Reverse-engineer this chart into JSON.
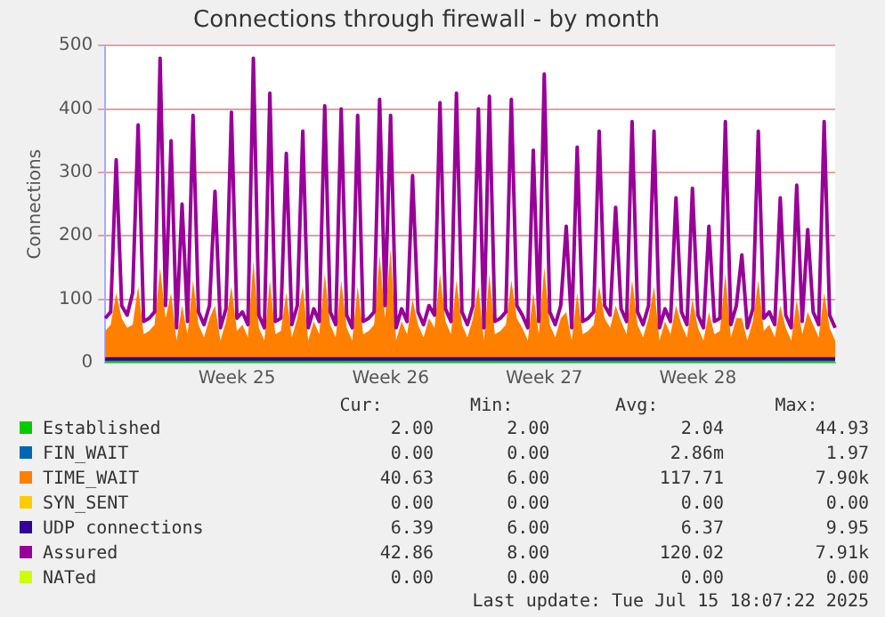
{
  "chart_data": {
    "type": "line",
    "title": "Connections through firewall - by month",
    "ylabel": "Connections",
    "categories": [
      null,
      null,
      null,
      null,
      null,
      null,
      null,
      null,
      null,
      null,
      null,
      null,
      null,
      null,
      null,
      null,
      null,
      null,
      null,
      null,
      null,
      null,
      null,
      null,
      "Week 25",
      null,
      null,
      null,
      null,
      null,
      null,
      null,
      null,
      null,
      null,
      null,
      null,
      null,
      null,
      null,
      null,
      null,
      null,
      null,
      null,
      null,
      null,
      null,
      null,
      null,
      null,
      null,
      "Week 26",
      null,
      null,
      null,
      null,
      null,
      null,
      null,
      null,
      null,
      null,
      null,
      null,
      null,
      null,
      null,
      null,
      null,
      null,
      null,
      null,
      null,
      null,
      null,
      null,
      null,
      null,
      null,
      "Week 27",
      null,
      null,
      null,
      null,
      null,
      null,
      null,
      null,
      null,
      null,
      null,
      null,
      null,
      null,
      null,
      null,
      null,
      null,
      null,
      null,
      null,
      null,
      null,
      null,
      null,
      null,
      null,
      "Week 28",
      null,
      null,
      null,
      null,
      null,
      null,
      null,
      null,
      null,
      null,
      null,
      null,
      null,
      null,
      null,
      null,
      null,
      null,
      null,
      null,
      null,
      null,
      null,
      null,
      null
    ],
    "series": [
      {
        "name": "Established",
        "color": "#00cc00",
        "values": [
          2,
          2,
          2,
          2,
          2,
          2,
          2,
          2,
          2,
          2,
          2,
          2,
          2,
          2,
          2,
          2,
          2,
          2,
          2,
          2,
          2,
          2,
          2,
          2,
          2,
          2,
          2,
          2,
          2,
          2,
          2,
          2,
          2,
          2,
          2,
          2,
          2,
          2,
          2,
          2,
          2,
          2,
          2,
          2,
          2,
          2,
          2,
          2,
          2,
          2,
          2,
          2,
          2,
          2,
          2,
          2,
          2,
          2,
          2,
          2,
          2,
          2,
          2,
          2,
          2,
          2,
          2,
          2,
          2,
          2,
          2,
          2,
          2,
          2,
          2,
          2,
          2,
          2,
          2,
          2,
          2,
          2,
          2,
          2,
          2,
          2,
          2,
          2,
          2,
          2,
          2,
          2,
          2,
          2,
          2,
          2,
          2,
          2,
          2,
          2,
          2,
          2,
          2,
          2,
          2,
          2,
          2,
          2,
          2,
          2,
          2,
          2,
          2,
          2,
          2,
          2,
          2,
          2,
          2,
          2,
          2,
          2,
          2,
          2,
          2,
          2,
          2,
          2,
          2,
          2,
          2,
          2,
          2,
          2
        ]
      },
      {
        "name": "FIN_WAIT",
        "color": "#0066b3",
        "values": [
          null,
          null,
          null,
          null,
          null,
          null,
          null,
          null,
          null,
          null,
          null,
          null,
          null,
          null,
          null,
          null,
          null,
          null,
          null,
          null,
          null,
          null,
          null,
          null,
          null,
          null,
          null,
          null,
          null,
          null,
          null,
          null,
          null,
          null,
          null,
          null,
          null,
          null,
          null,
          null,
          null,
          null,
          null,
          null,
          null,
          null,
          null,
          null,
          null,
          null,
          null,
          null,
          null,
          null,
          null,
          null,
          null,
          null,
          null,
          null,
          null,
          null,
          null,
          null,
          null,
          null,
          null,
          null,
          null,
          null,
          null,
          null,
          null,
          null,
          null,
          null,
          null,
          null,
          null,
          null,
          null,
          null,
          null,
          null,
          null,
          null,
          null,
          null,
          null,
          null,
          null,
          null,
          null,
          null,
          null,
          null,
          null,
          null,
          null,
          null,
          null,
          null,
          null,
          null,
          null,
          null,
          null,
          null,
          null,
          null,
          null,
          null,
          null,
          null,
          null,
          null,
          null,
          null,
          null,
          null,
          null,
          null,
          null,
          null,
          null,
          null,
          null,
          null,
          null,
          null,
          null,
          null,
          null,
          null
        ]
      },
      {
        "name": "TIME_WAIT",
        "type": "area",
        "color": "#ff8000",
        "values": [
          50,
          60,
          110,
          70,
          55,
          60,
          120,
          45,
          50,
          60,
          150,
          70,
          110,
          35,
          90,
          45,
          130,
          60,
          40,
          70,
          90,
          35,
          65,
          120,
          50,
          60,
          40,
          160,
          55,
          35,
          130,
          45,
          50,
          110,
          40,
          70,
          120,
          35,
          65,
          45,
          140,
          60,
          40,
          130,
          55,
          35,
          120,
          45,
          50,
          60,
          170,
          70,
          180,
          35,
          65,
          45,
          100,
          60,
          40,
          70,
          55,
          140,
          65,
          45,
          130,
          60,
          40,
          70,
          120,
          35,
          140,
          45,
          50,
          60,
          130,
          70,
          55,
          35,
          110,
          45,
          150,
          60,
          40,
          70,
          80,
          35,
          110,
          45,
          50,
          60,
          120,
          70,
          55,
          90,
          65,
          45,
          130,
          60,
          40,
          70,
          120,
          35,
          65,
          45,
          90,
          60,
          40,
          100,
          55,
          35,
          80,
          45,
          50,
          140,
          40,
          70,
          70,
          35,
          65,
          130,
          50,
          60,
          40,
          90,
          55,
          35,
          100,
          45,
          80,
          60,
          40,
          110,
          55,
          35
        ]
      },
      {
        "name": "SYN_SENT",
        "color": "#ffcc00",
        "values": [
          null,
          null,
          null,
          null,
          null,
          null,
          null,
          null,
          null,
          null,
          null,
          null,
          null,
          null,
          null,
          null,
          null,
          null,
          null,
          null,
          null,
          null,
          null,
          null,
          null,
          null,
          null,
          null,
          null,
          null,
          null,
          null,
          null,
          null,
          null,
          null,
          null,
          null,
          null,
          null,
          null,
          null,
          null,
          null,
          null,
          null,
          null,
          null,
          null,
          null,
          null,
          null,
          null,
          null,
          null,
          null,
          null,
          null,
          null,
          null,
          null,
          null,
          null,
          null,
          null,
          null,
          null,
          null,
          null,
          null,
          null,
          null,
          null,
          null,
          null,
          null,
          null,
          null,
          null,
          null,
          null,
          null,
          null,
          null,
          null,
          null,
          null,
          null,
          null,
          null,
          null,
          null,
          null,
          null,
          null,
          null,
          null,
          null,
          null,
          null,
          null,
          null,
          null,
          null,
          null,
          null,
          null,
          null,
          null,
          null,
          null,
          null,
          null,
          null,
          null,
          null,
          null,
          null,
          null,
          null,
          null,
          null,
          null,
          null,
          null,
          null,
          null,
          null,
          null,
          null,
          null,
          null,
          null,
          null
        ]
      },
      {
        "name": "UDP connections",
        "color": "#330099",
        "values": [
          6,
          6,
          6,
          6,
          6,
          6,
          6,
          6,
          6,
          6,
          6,
          6,
          6,
          6,
          6,
          6,
          6,
          6,
          6,
          6,
          6,
          6,
          6,
          6,
          6,
          6,
          6,
          6,
          6,
          6,
          6,
          6,
          6,
          6,
          6,
          6,
          6,
          6,
          6,
          6,
          6,
          6,
          6,
          6,
          6,
          6,
          6,
          6,
          6,
          6,
          6,
          6,
          6,
          6,
          6,
          6,
          6,
          6,
          6,
          6,
          6,
          6,
          6,
          6,
          6,
          6,
          6,
          6,
          6,
          6,
          6,
          6,
          6,
          6,
          6,
          6,
          6,
          6,
          6,
          6,
          6,
          6,
          6,
          6,
          6,
          6,
          6,
          6,
          6,
          6,
          6,
          6,
          6,
          6,
          6,
          6,
          6,
          6,
          6,
          6,
          6,
          6,
          6,
          6,
          6,
          6,
          6,
          6,
          6,
          6,
          6,
          6,
          6,
          6,
          6,
          6,
          6,
          6,
          6,
          6,
          6,
          6,
          6,
          6,
          6,
          6,
          6,
          6,
          6,
          6,
          6,
          6,
          6,
          6
        ]
      },
      {
        "name": "Assured",
        "color": "#990099",
        "values": [
          70,
          80,
          320,
          90,
          75,
          110,
          375,
          65,
          70,
          80,
          480,
          90,
          350,
          55,
          250,
          65,
          390,
          80,
          60,
          90,
          270,
          55,
          85,
          395,
          70,
          80,
          60,
          480,
          75,
          55,
          425,
          65,
          70,
          330,
          60,
          90,
          365,
          55,
          85,
          65,
          405,
          80,
          60,
          400,
          75,
          55,
          390,
          65,
          70,
          80,
          415,
          90,
          390,
          55,
          85,
          65,
          295,
          80,
          60,
          90,
          75,
          410,
          85,
          65,
          425,
          80,
          60,
          90,
          400,
          55,
          420,
          65,
          70,
          80,
          415,
          90,
          75,
          55,
          335,
          65,
          455,
          80,
          60,
          90,
          215,
          55,
          340,
          65,
          70,
          80,
          365,
          90,
          75,
          245,
          85,
          65,
          380,
          80,
          60,
          90,
          365,
          55,
          85,
          65,
          260,
          80,
          60,
          275,
          75,
          55,
          215,
          65,
          70,
          380,
          60,
          90,
          170,
          55,
          85,
          365,
          70,
          80,
          60,
          260,
          75,
          55,
          280,
          65,
          210,
          80,
          60,
          380,
          75,
          55
        ]
      },
      {
        "name": "NATed",
        "color": "#ccff00",
        "values": [
          null,
          null,
          null,
          null,
          null,
          null,
          null,
          null,
          null,
          null,
          null,
          null,
          null,
          null,
          null,
          null,
          null,
          null,
          null,
          null,
          null,
          null,
          null,
          null,
          null,
          null,
          null,
          null,
          null,
          null,
          null,
          null,
          null,
          null,
          null,
          null,
          null,
          null,
          null,
          null,
          null,
          null,
          null,
          null,
          null,
          null,
          null,
          null,
          null,
          null,
          null,
          null,
          null,
          null,
          null,
          null,
          null,
          null,
          null,
          null,
          null,
          null,
          null,
          null,
          null,
          null,
          null,
          null,
          null,
          null,
          null,
          null,
          null,
          null,
          null,
          null,
          null,
          null,
          null,
          null,
          null,
          null,
          null,
          null,
          null,
          null,
          null,
          null,
          null,
          null,
          null,
          null,
          null,
          null,
          null,
          null,
          null,
          null,
          null,
          null,
          null,
          null,
          null,
          null,
          null,
          null,
          null,
          null,
          null,
          null,
          null,
          null,
          null,
          null,
          null,
          null,
          null,
          null,
          null,
          null,
          null,
          null,
          null,
          null,
          null,
          null,
          null,
          null,
          null,
          null,
          null,
          null,
          null,
          null
        ]
      }
    ],
    "ylim": [
      0,
      500
    ],
    "yticks": [
      0,
      100,
      200,
      300,
      400,
      500
    ],
    "grid": "y",
    "legend": "bottom",
    "annotations": [
      "Cur:",
      "Min:",
      "Avg:",
      "Max:",
      "2.00",
      "2.00",
      "2.04",
      "44.93",
      "0.00",
      "0.00",
      "2.86m",
      "1.97",
      "40.63",
      "6.00",
      "117.71",
      "7.90k",
      "0.00",
      "0.00",
      "0.00",
      "0.00",
      "6.39",
      "6.00",
      "6.37",
      "9.95",
      "42.86",
      "8.00",
      "120.02",
      "7.91k",
      "0.00",
      "0.00",
      "0.00",
      "0.00",
      "Last update: Tue Jul 15 18:07:22 2025"
    ]
  }
}
